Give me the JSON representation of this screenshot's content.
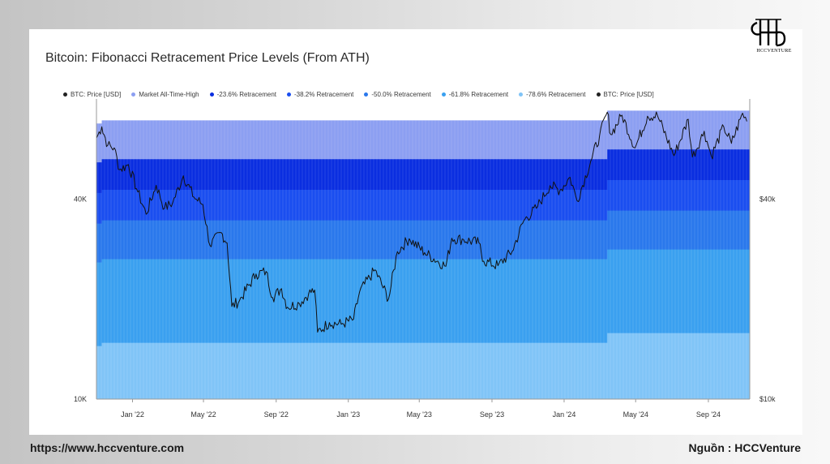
{
  "brand": {
    "logo_text": "HCCVENTURE",
    "website": "https://www.hccventure.com",
    "source": "Nguồn : HCCVenture"
  },
  "chart_data": {
    "type": "area",
    "title": "Bitcoin: Fibonacci Retracement Price Levels (From ATH)",
    "y_scale": "log",
    "ylim": [
      10000,
      80000
    ],
    "left_ticks": [
      {
        "value": 10000,
        "label": "10K"
      },
      {
        "value": 40000,
        "label": "40K"
      }
    ],
    "right_ticks": [
      {
        "value": 10000,
        "label": "$10k"
      },
      {
        "value": 40000,
        "label": "$40k"
      }
    ],
    "xlim": [
      "2021-11-01",
      "2024-11-10"
    ],
    "x_ticks": [
      {
        "date": "2022-01-01",
        "label": "Jan '22"
      },
      {
        "date": "2022-05-01",
        "label": "May '22"
      },
      {
        "date": "2022-09-01",
        "label": "Sep '22"
      },
      {
        "date": "2023-01-01",
        "label": "Jan '23"
      },
      {
        "date": "2023-05-01",
        "label": "May '23"
      },
      {
        "date": "2023-09-01",
        "label": "Sep '23"
      },
      {
        "date": "2024-01-01",
        "label": "Jan '24"
      },
      {
        "date": "2024-05-01",
        "label": "May '24"
      },
      {
        "date": "2024-09-01",
        "label": "Sep '24"
      }
    ],
    "legend_placement": "top",
    "legend": [
      {
        "label": "BTC: Price [USD]",
        "color": "#222222"
      },
      {
        "label": "Market All-Time-High",
        "color": "#8c9ff2"
      },
      {
        "label": "-23.6% Retracement",
        "color": "#0a2ee0"
      },
      {
        "label": "-38.2% Retracement",
        "color": "#1a4ef0"
      },
      {
        "label": "-50.0% Retracement",
        "color": "#2a78ec"
      },
      {
        "label": "-61.8% Retracement",
        "color": "#3aa0f0"
      },
      {
        "label": "-78.6% Retracement",
        "color": "#80c4f7"
      },
      {
        "label": "BTC: Price [USD]",
        "color": "#222222"
      }
    ],
    "bands": [
      {
        "name": "Market All-Time-High",
        "color": "#8c9ff2",
        "fraction": 1.0
      },
      {
        "name": "-23.6% Retracement",
        "color": "#0a2ee0",
        "fraction": 0.764
      },
      {
        "name": "-38.2% Retracement",
        "color": "#1a4ef0",
        "fraction": 0.618
      },
      {
        "name": "-50.0% Retracement",
        "color": "#2a78ec",
        "fraction": 0.5
      },
      {
        "name": "-61.8% Retracement",
        "color": "#3aa0f0",
        "fraction": 0.382
      },
      {
        "name": "-78.6% Retracement",
        "color": "#80c4f7",
        "fraction": 0.214
      }
    ],
    "ath_series": [
      {
        "date": "2021-11-01",
        "value": 67500
      },
      {
        "date": "2021-11-10",
        "value": 69000
      },
      {
        "date": "2024-03-05",
        "value": 69000
      },
      {
        "date": "2024-03-14",
        "value": 73800
      },
      {
        "date": "2024-11-10",
        "value": 73800
      }
    ],
    "price_series": [
      {
        "date": "2021-11-01",
        "value": 61000
      },
      {
        "date": "2021-11-10",
        "value": 66000
      },
      {
        "date": "2021-11-20",
        "value": 58000
      },
      {
        "date": "2021-12-01",
        "value": 57000
      },
      {
        "date": "2021-12-10",
        "value": 49000
      },
      {
        "date": "2021-12-25",
        "value": 50800
      },
      {
        "date": "2022-01-10",
        "value": 42000
      },
      {
        "date": "2022-01-24",
        "value": 36000
      },
      {
        "date": "2022-02-10",
        "value": 44000
      },
      {
        "date": "2022-02-24",
        "value": 37500
      },
      {
        "date": "2022-03-10",
        "value": 39000
      },
      {
        "date": "2022-03-28",
        "value": 47000
      },
      {
        "date": "2022-04-15",
        "value": 40500
      },
      {
        "date": "2022-04-30",
        "value": 38500
      },
      {
        "date": "2022-05-12",
        "value": 29000
      },
      {
        "date": "2022-05-31",
        "value": 31700
      },
      {
        "date": "2022-06-10",
        "value": 29500
      },
      {
        "date": "2022-06-18",
        "value": 19000
      },
      {
        "date": "2022-07-01",
        "value": 19800
      },
      {
        "date": "2022-07-29",
        "value": 23800
      },
      {
        "date": "2022-08-15",
        "value": 24200
      },
      {
        "date": "2022-08-26",
        "value": 20200
      },
      {
        "date": "2022-09-10",
        "value": 21500
      },
      {
        "date": "2022-09-20",
        "value": 18900
      },
      {
        "date": "2022-10-10",
        "value": 19400
      },
      {
        "date": "2022-10-26",
        "value": 20800
      },
      {
        "date": "2022-11-05",
        "value": 21300
      },
      {
        "date": "2022-11-10",
        "value": 15900
      },
      {
        "date": "2022-11-30",
        "value": 17000
      },
      {
        "date": "2022-12-20",
        "value": 16800
      },
      {
        "date": "2023-01-10",
        "value": 17400
      },
      {
        "date": "2023-01-20",
        "value": 21000
      },
      {
        "date": "2023-02-15",
        "value": 24500
      },
      {
        "date": "2023-03-10",
        "value": 20000
      },
      {
        "date": "2023-03-25",
        "value": 27800
      },
      {
        "date": "2023-04-14",
        "value": 30400
      },
      {
        "date": "2023-05-10",
        "value": 27600
      },
      {
        "date": "2023-06-15",
        "value": 25100
      },
      {
        "date": "2023-06-25",
        "value": 30500
      },
      {
        "date": "2023-07-15",
        "value": 30200
      },
      {
        "date": "2023-08-10",
        "value": 29500
      },
      {
        "date": "2023-08-18",
        "value": 26000
      },
      {
        "date": "2023-09-11",
        "value": 25200
      },
      {
        "date": "2023-10-05",
        "value": 27800
      },
      {
        "date": "2023-10-25",
        "value": 34500
      },
      {
        "date": "2023-11-15",
        "value": 37500
      },
      {
        "date": "2023-12-08",
        "value": 43900
      },
      {
        "date": "2023-12-25",
        "value": 42500
      },
      {
        "date": "2024-01-11",
        "value": 46500
      },
      {
        "date": "2024-01-23",
        "value": 39500
      },
      {
        "date": "2024-02-15",
        "value": 52000
      },
      {
        "date": "2024-03-01",
        "value": 62000
      },
      {
        "date": "2024-03-14",
        "value": 73000
      },
      {
        "date": "2024-03-20",
        "value": 62500
      },
      {
        "date": "2024-04-08",
        "value": 71500
      },
      {
        "date": "2024-04-30",
        "value": 57000
      },
      {
        "date": "2024-05-21",
        "value": 71000
      },
      {
        "date": "2024-06-07",
        "value": 71300
      },
      {
        "date": "2024-07-05",
        "value": 54000
      },
      {
        "date": "2024-07-29",
        "value": 69500
      },
      {
        "date": "2024-08-05",
        "value": 53500
      },
      {
        "date": "2024-08-25",
        "value": 64000
      },
      {
        "date": "2024-09-06",
        "value": 53800
      },
      {
        "date": "2024-09-27",
        "value": 66000
      },
      {
        "date": "2024-10-10",
        "value": 58800
      },
      {
        "date": "2024-10-29",
        "value": 72500
      },
      {
        "date": "2024-11-05",
        "value": 68500
      }
    ]
  }
}
